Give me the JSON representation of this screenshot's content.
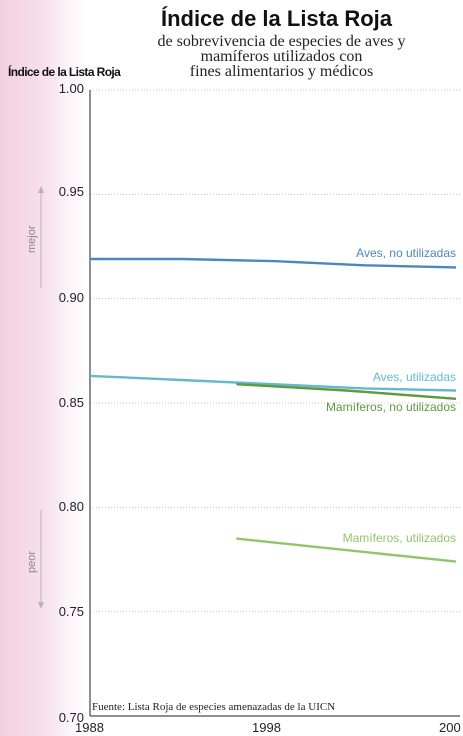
{
  "chart_data": {
    "type": "line",
    "title": "Índice de la Lista Roja",
    "subtitle_lines": [
      "de sobrevivencia de especies de aves y",
      "mamíferos utilizados con",
      "fines alimentarios y médicos"
    ],
    "ylabel": "Índice de la Lista Roja",
    "ylim": [
      0.7,
      1.0
    ],
    "y_ticks": [
      "1.00",
      "0.95",
      "0.90",
      "0.85",
      "0.80",
      "0.75",
      "0.70"
    ],
    "x_ticks": [
      "1988",
      "1998",
      "200"
    ],
    "xlim": [
      1988,
      2008
    ],
    "grid": true,
    "series": [
      {
        "name": "Aves, no utilizadas",
        "color": "#4a86c0",
        "x": [
          1988,
          1993,
          1998,
          2003,
          2008
        ],
        "y": [
          0.919,
          0.919,
          0.918,
          0.916,
          0.915
        ]
      },
      {
        "name": "Aves, utilizadas",
        "color": "#64bacb",
        "x": [
          1988,
          1993,
          1998,
          2003,
          2008
        ],
        "y": [
          0.863,
          0.861,
          0.859,
          0.857,
          0.856
        ]
      },
      {
        "name": "Mamíferos, no utilizados",
        "color": "#5e9a3e",
        "x": [
          1996,
          2002,
          2008
        ],
        "y": [
          0.859,
          0.856,
          0.852
        ]
      },
      {
        "name": "Mamíferos, utilizados",
        "color": "#92c46e",
        "x": [
          1996,
          2008
        ],
        "y": [
          0.785,
          0.774
        ]
      }
    ]
  },
  "side_labels": {
    "better": "mejor",
    "worse": "peor"
  },
  "source": "Fuente: Lista Roja de especies amenazadas de la UICN",
  "colors": {
    "grid": "#c8c8c8",
    "axis": "#222222",
    "arrow": "#b5b5b5"
  }
}
